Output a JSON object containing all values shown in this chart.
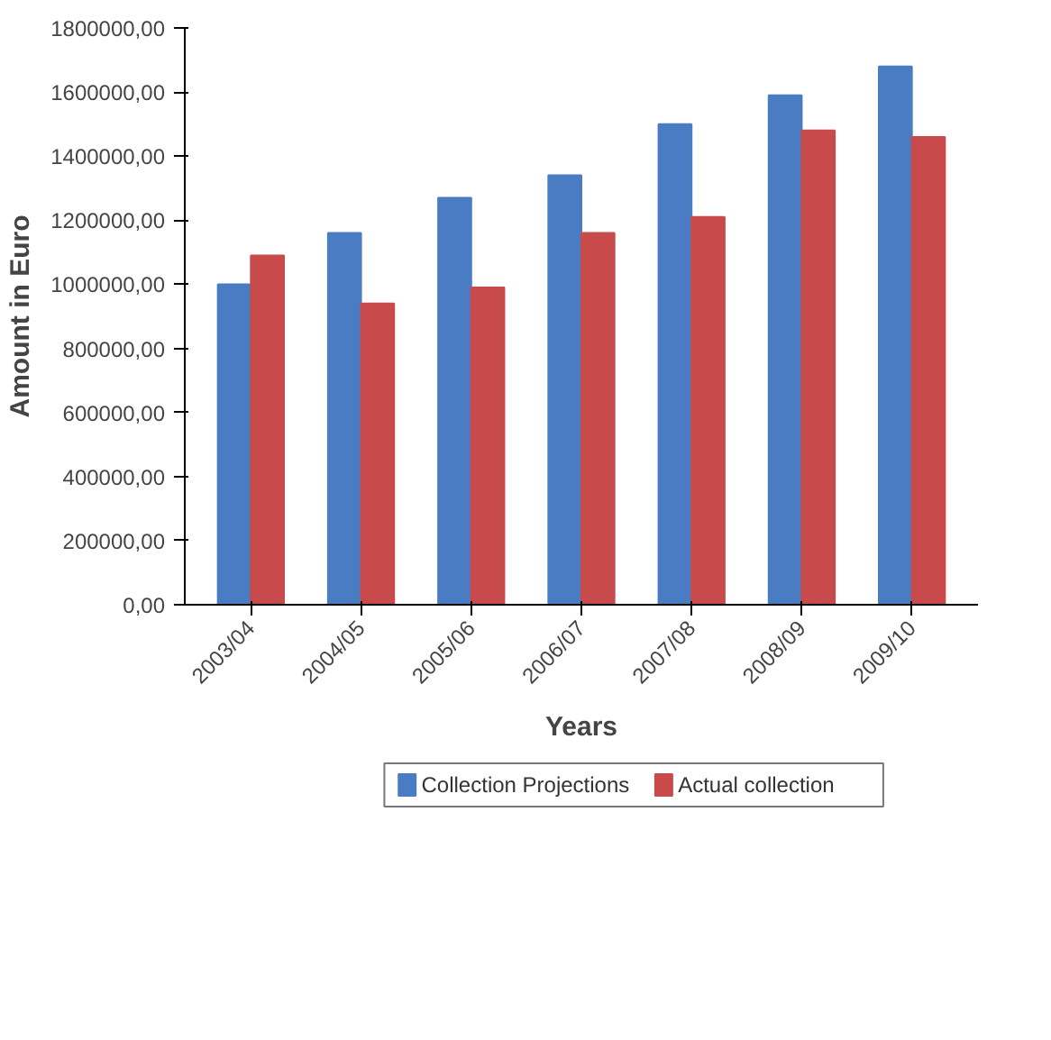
{
  "chart_data": {
    "type": "bar",
    "xlabel": "Years",
    "ylabel": "Amount in Euro",
    "categories": [
      "2003/04",
      "2004/05",
      "2005/06",
      "2006/07",
      "2007/08",
      "2008/09",
      "2009/10"
    ],
    "series": [
      {
        "name": "Collection Projections",
        "color": "#4a7cc4",
        "values": [
          1000000,
          1160000,
          1270000,
          1340000,
          1500000,
          1590000,
          1680000
        ]
      },
      {
        "name": "Actual collection",
        "color": "#c84a4a",
        "values": [
          1090000,
          940000,
          990000,
          1160000,
          1210000,
          1480000,
          1460000
        ]
      }
    ],
    "ylim": [
      0,
      1800000
    ],
    "yticks": [
      {
        "value": 0,
        "label": "0,00"
      },
      {
        "value": 200000,
        "label": "200000,00"
      },
      {
        "value": 400000,
        "label": "400000,00"
      },
      {
        "value": 600000,
        "label": "600000,00"
      },
      {
        "value": 800000,
        "label": "800000,00"
      },
      {
        "value": 1000000,
        "label": "1000000,00"
      },
      {
        "value": 1200000,
        "label": "1200000,00"
      },
      {
        "value": 1400000,
        "label": "1400000,00"
      },
      {
        "value": 1600000,
        "label": "1600000,00"
      },
      {
        "value": 1800000,
        "label": "1800000,00"
      }
    ],
    "grid": false,
    "legend": "bottom"
  }
}
